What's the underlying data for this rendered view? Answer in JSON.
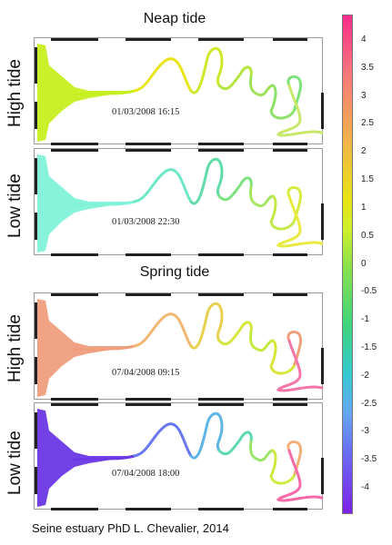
{
  "titles": {
    "neap": "Neap tide",
    "spring": "Spring tide"
  },
  "panels": [
    {
      "row_label": "High tide",
      "timestamp": "01/03/2008 16:15",
      "mouth_color": "#c7ef20",
      "river_colors": [
        "#c7ef20",
        "#e8e51a",
        "#cfe82a",
        "#b5e640",
        "#9fe25a",
        "#8ee26a",
        "#7ee27a",
        "#c8e86a"
      ]
    },
    {
      "row_label": "Low tide",
      "timestamp": "01/03/2008 22:30",
      "mouth_color": "#7ff2d8",
      "river_colors": [
        "#7ff2d8",
        "#6fe8c8",
        "#5fdca8",
        "#7ee280",
        "#a4e660",
        "#c4ea4a",
        "#d8ea40",
        "#e8ea40"
      ]
    },
    {
      "row_label": "High tide",
      "timestamp": "07/04/2008 09:15",
      "mouth_color": "#ef9e7e",
      "river_colors": [
        "#ef9e7e",
        "#f0b872",
        "#e8d050",
        "#d6e63c",
        "#c3ea3e",
        "#d8e63a",
        "#f0a078",
        "#f477a8"
      ]
    },
    {
      "row_label": "Low tide",
      "timestamp": "07/04/2008 18:00",
      "mouth_color": "#6b38e6",
      "river_colors": [
        "#6b38e6",
        "#6a78f0",
        "#5fb6e6",
        "#5ed8b0",
        "#9ae46a",
        "#d0ea42",
        "#f0b078",
        "#f66aa8"
      ]
    }
  ],
  "colorbar": {
    "labels": [
      "4",
      "3.5",
      "3",
      "2.5",
      "2",
      "1.5",
      "1",
      "0.5",
      "0",
      "-0.5",
      "-1",
      "-1.5",
      "-2",
      "-2.5",
      "-3",
      "-3.5",
      "-4"
    ]
  },
  "footer": "Seine estuary PhD L. Chevalier, 2014"
}
